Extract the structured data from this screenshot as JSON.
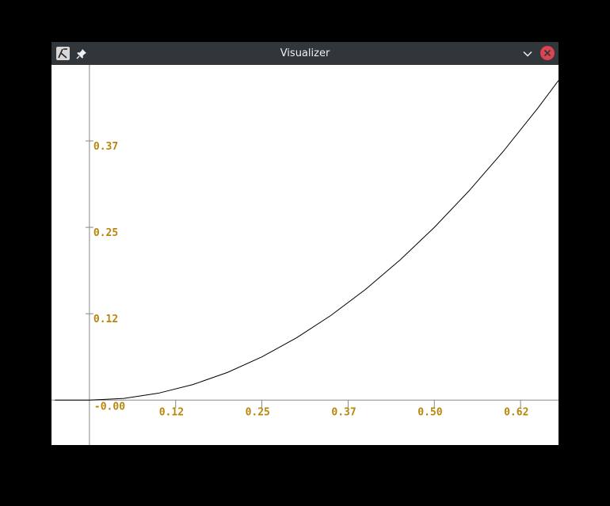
{
  "window": {
    "title": "Visualizer",
    "icons": {
      "app": "app-logo-icon",
      "pin": "pin-icon",
      "minimize": "chevron-down-icon",
      "close": "close-icon"
    },
    "colors": {
      "titlebar": "#31363b",
      "close": "#da4453",
      "tick_label": "#b8860b",
      "axis": "#888888",
      "curve": "#000000"
    }
  },
  "chart_data": {
    "type": "line",
    "function_shape": "x^2 (zero for x <= 0)",
    "x": [
      -0.05,
      -0.02,
      0.0,
      0.05,
      0.1,
      0.15,
      0.2,
      0.25,
      0.3,
      0.35,
      0.4,
      0.45,
      0.5,
      0.55,
      0.6,
      0.65,
      0.68
    ],
    "y": [
      0.0,
      0.0,
      0.0,
      0.0025,
      0.01,
      0.0225,
      0.04,
      0.0625,
      0.09,
      0.1225,
      0.16,
      0.2025,
      0.25,
      0.3025,
      0.36,
      0.4225,
      0.4624
    ],
    "x_ticks": [
      {
        "value": 0.0,
        "label": "-0.00"
      },
      {
        "value": 0.125,
        "label": "0.12"
      },
      {
        "value": 0.25,
        "label": "0.25"
      },
      {
        "value": 0.375,
        "label": "0.37"
      },
      {
        "value": 0.5,
        "label": "0.50"
      },
      {
        "value": 0.625,
        "label": "0.62"
      }
    ],
    "y_ticks": [
      {
        "value": 0.125,
        "label": "0.12"
      },
      {
        "value": 0.25,
        "label": "0.25"
      },
      {
        "value": 0.375,
        "label": "0.37"
      }
    ],
    "xlim": [
      -0.055,
      0.68
    ],
    "ylim": [
      -0.065,
      0.485
    ],
    "grid": false,
    "legend": "none"
  }
}
